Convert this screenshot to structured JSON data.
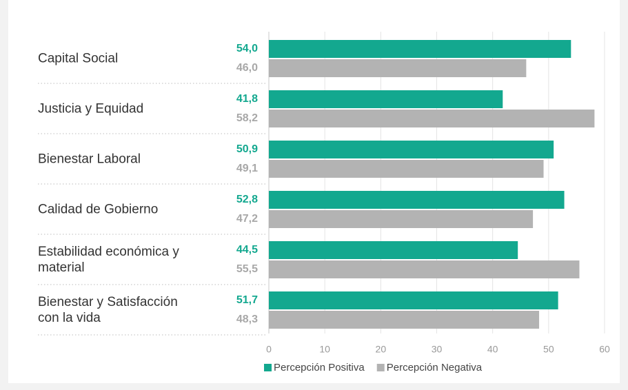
{
  "chart_data": {
    "type": "bar",
    "orientation": "horizontal",
    "categories": [
      "Capital Social",
      "Justicia y Equidad",
      "Bienestar Laboral",
      "Calidad de Gobierno",
      "Estabilidad económica y material",
      "Bienestar y Satisfacción con la vida"
    ],
    "series": [
      {
        "name": "Percepción Positiva",
        "color": "#13a88f",
        "values": [
          54.0,
          41.8,
          50.9,
          52.8,
          44.5,
          51.7
        ],
        "value_labels": [
          "54,0",
          "41,8",
          "50,9",
          "52,8",
          "44,5",
          "51,7"
        ]
      },
      {
        "name": "Percepción Negativa",
        "color": "#b3b3b3",
        "values": [
          46.0,
          58.2,
          49.1,
          47.2,
          55.5,
          48.3
        ],
        "value_labels": [
          "46,0",
          "58,2",
          "49,1",
          "47,2",
          "55,5",
          "48,3"
        ]
      }
    ],
    "xlim": [
      0,
      60
    ],
    "xticks": [
      0,
      10,
      20,
      30,
      40,
      50,
      60
    ],
    "grid": true,
    "legend": "bottom"
  }
}
